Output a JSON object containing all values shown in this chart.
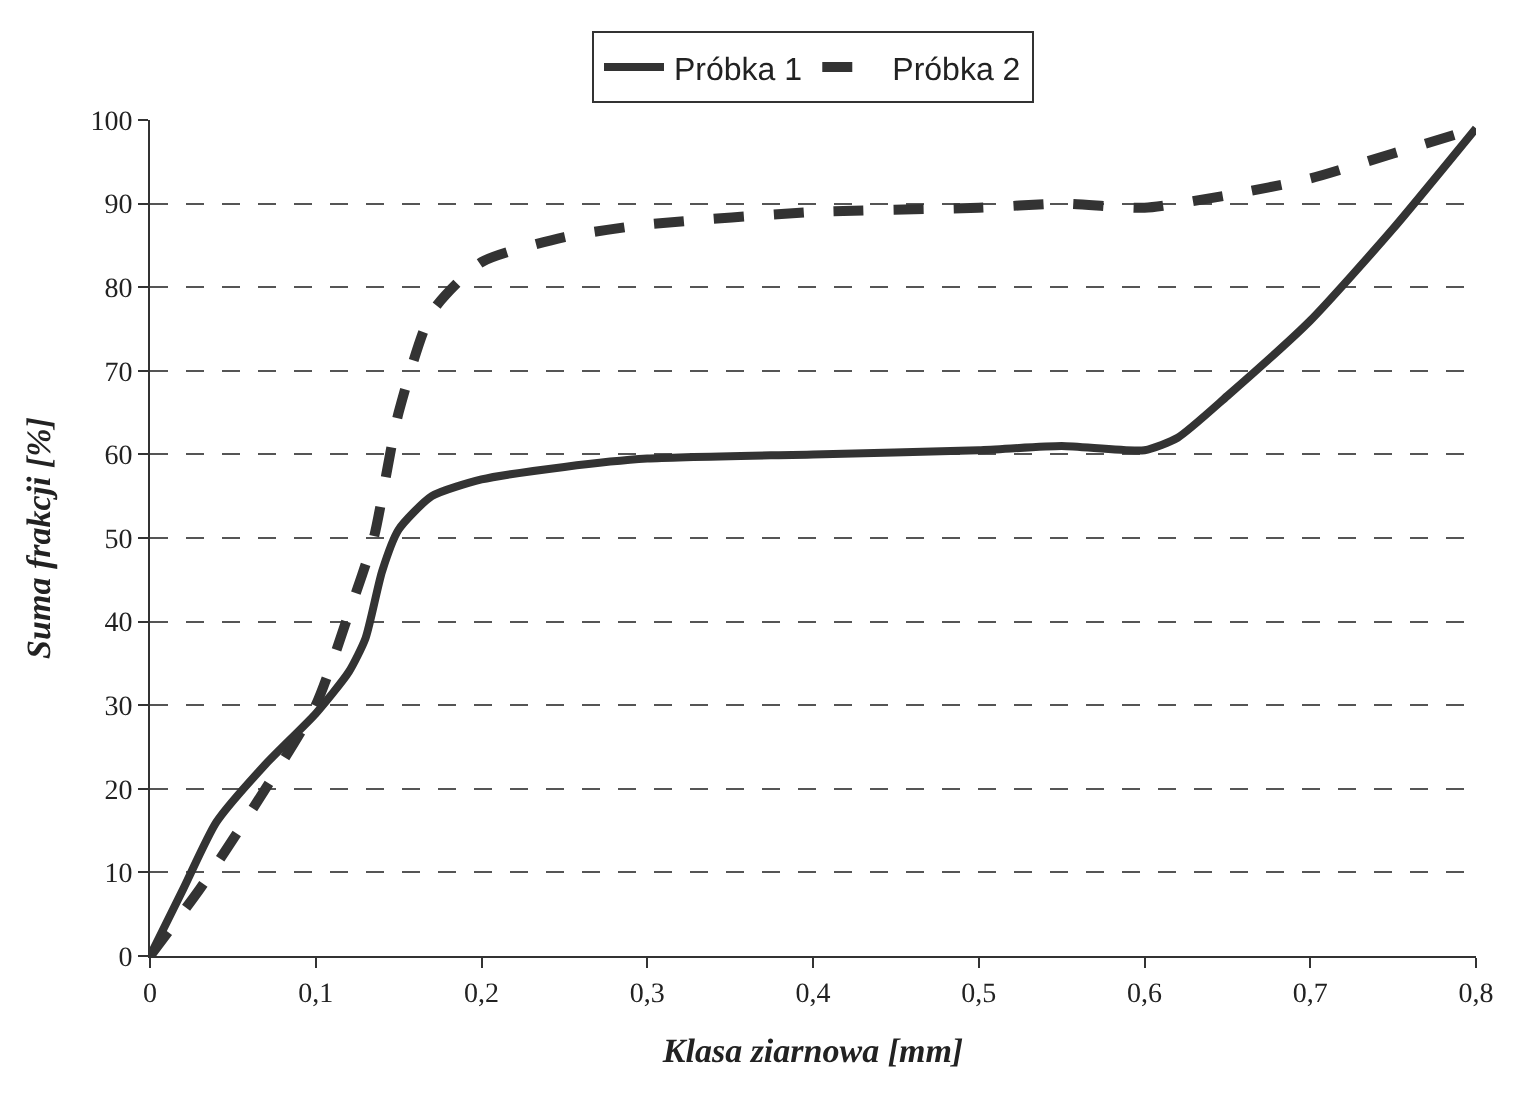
{
  "chart_data": {
    "type": "line",
    "xlabel": "Klasa ziarnowa [mm]",
    "ylabel": "Suma frakcji [%]",
    "series": [
      {
        "name": "Próbka 1",
        "color": "#333333",
        "line_style": "solid",
        "x": [
          0,
          0.02,
          0.04,
          0.07,
          0.1,
          0.12,
          0.13,
          0.14,
          0.15,
          0.17,
          0.2,
          0.25,
          0.3,
          0.4,
          0.5,
          0.55,
          0.6,
          0.62,
          0.65,
          0.7,
          0.75,
          0.8
        ],
        "values": [
          0,
          8,
          16,
          23,
          29,
          34,
          38,
          46,
          51,
          55,
          57,
          58.5,
          59.5,
          60,
          60.5,
          61,
          60.5,
          62,
          67,
          76,
          87,
          99
        ]
      },
      {
        "name": "Próbka 2",
        "color": "#333333",
        "line_style": "dashed",
        "x": [
          0,
          0.03,
          0.06,
          0.1,
          0.12,
          0.135,
          0.15,
          0.17,
          0.2,
          0.25,
          0.3,
          0.4,
          0.5,
          0.55,
          0.6,
          0.65,
          0.7,
          0.75,
          0.8
        ],
        "values": [
          0,
          8,
          17,
          30,
          41,
          50,
          65,
          77,
          83,
          86,
          87.5,
          89,
          89.5,
          90,
          89.5,
          91,
          93,
          96,
          99
        ]
      }
    ],
    "xlim": [
      0,
      0.8
    ],
    "xticks": [
      0,
      {
        "value": 0.1,
        "label": "0,1"
      },
      {
        "value": 0.2,
        "label": "0,2"
      },
      {
        "value": 0.3,
        "label": "0,3"
      },
      {
        "value": 0.4,
        "label": "0,4"
      },
      {
        "value": 0.5,
        "label": "0,5"
      },
      {
        "value": 0.6,
        "label": "0,6"
      },
      {
        "value": 0.7,
        "label": "0,7"
      },
      {
        "value": 0.8,
        "label": "0,8"
      }
    ],
    "ylim": [
      0,
      100
    ],
    "yticks": [
      0,
      10,
      20,
      30,
      40,
      50,
      60,
      70,
      80,
      90,
      100
    ],
    "grid": "y",
    "legend": "top",
    "marker": "none"
  }
}
